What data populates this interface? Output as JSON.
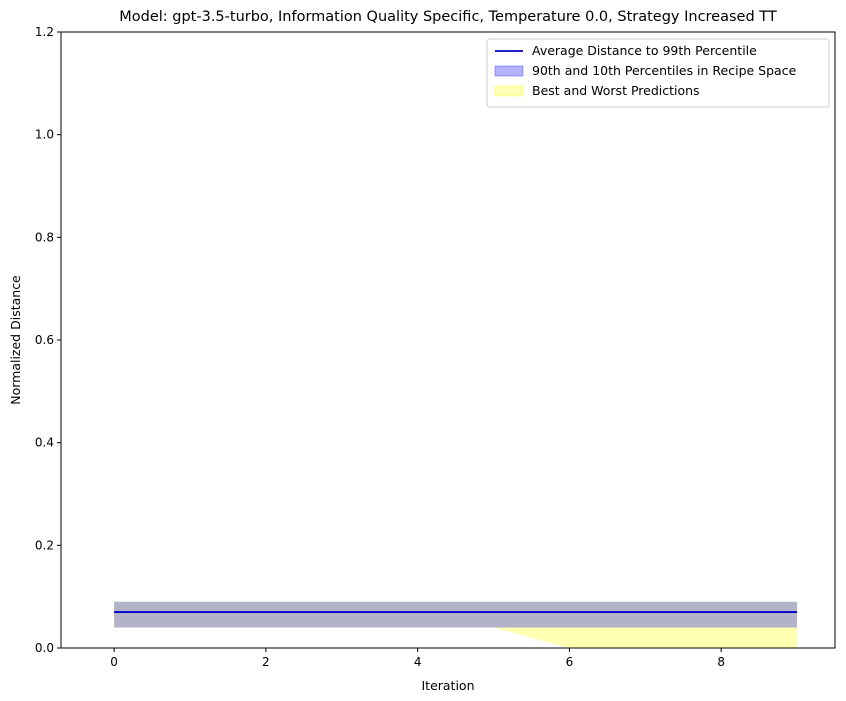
{
  "chart_data": {
    "type": "line",
    "title": "Model: gpt-3.5-turbo, Information Quality Specific, Temperature 0.0, Strategy Increased TT",
    "xlabel": "Iteration",
    "ylabel": "Normalized Distance",
    "xlim": [
      -0.7,
      9.5
    ],
    "ylim": [
      0.0,
      1.2
    ],
    "x_ticks": [
      0,
      2,
      4,
      6,
      8
    ],
    "x_tick_labels": [
      "0",
      "2",
      "4",
      "6",
      "8"
    ],
    "y_ticks": [
      0.0,
      0.2,
      0.4,
      0.6,
      0.8,
      1.0,
      1.2
    ],
    "y_tick_labels": [
      "0.0",
      "0.2",
      "0.4",
      "0.6",
      "0.8",
      "1.0",
      "1.2"
    ],
    "x": [
      0,
      1,
      2,
      3,
      4,
      5,
      6,
      7,
      8,
      9
    ],
    "series": [
      {
        "name": "Average Distance to 99th Percentile",
        "kind": "line",
        "color": "#0000cc",
        "values": [
          0.07,
          0.07,
          0.07,
          0.07,
          0.07,
          0.07,
          0.07,
          0.07,
          0.07,
          0.07
        ]
      },
      {
        "name": "90th and 10th Percentiles in Recipe Space",
        "kind": "band",
        "color": "#0000ff",
        "opacity": 0.3,
        "upper": [
          0.09,
          0.09,
          0.09,
          0.09,
          0.09,
          0.09,
          0.09,
          0.09,
          0.09,
          0.09
        ],
        "lower": [
          0.04,
          0.04,
          0.04,
          0.04,
          0.04,
          0.04,
          0.04,
          0.04,
          0.04,
          0.04
        ]
      },
      {
        "name": "Best and Worst Predictions",
        "kind": "band",
        "color": "#ffff00",
        "opacity": 0.3,
        "upper": [
          0.09,
          0.09,
          0.09,
          0.09,
          0.09,
          0.09,
          0.09,
          0.09,
          0.09,
          0.09
        ],
        "lower": [
          0.04,
          0.04,
          0.04,
          0.04,
          0.04,
          0.04,
          0.0,
          0.0,
          0.0,
          0.0
        ]
      }
    ],
    "legend_position": "top-right",
    "grid": false
  }
}
